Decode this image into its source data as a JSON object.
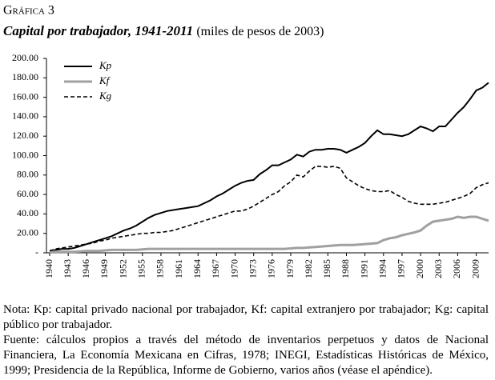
{
  "chart_data": {
    "type": "line",
    "label": "Gráfica 3",
    "title": "Capital por trabajador, 1941-2011",
    "subtitle": "(miles de pesos de 2003)",
    "x": [
      1940,
      1941,
      1942,
      1943,
      1944,
      1945,
      1946,
      1947,
      1948,
      1949,
      1950,
      1951,
      1952,
      1953,
      1954,
      1955,
      1956,
      1957,
      1958,
      1959,
      1960,
      1961,
      1962,
      1963,
      1964,
      1965,
      1966,
      1967,
      1968,
      1969,
      1970,
      1971,
      1972,
      1973,
      1974,
      1975,
      1976,
      1977,
      1978,
      1979,
      1980,
      1981,
      1982,
      1983,
      1984,
      1985,
      1986,
      1987,
      1988,
      1989,
      1990,
      1991,
      1992,
      1993,
      1994,
      1995,
      1996,
      1997,
      1998,
      1999,
      2000,
      2001,
      2002,
      2003,
      2004,
      2005,
      2006,
      2007,
      2008,
      2009,
      2010,
      2011
    ],
    "series": [
      {
        "name": "Kp",
        "color": "#000000",
        "style": "solid",
        "values": [
          2,
          3,
          4,
          4,
          5,
          7,
          9,
          11,
          13,
          15,
          17,
          20,
          23,
          25,
          28,
          32,
          36,
          39,
          41,
          43,
          44,
          45,
          46,
          47,
          48,
          51,
          54,
          58,
          61,
          65,
          69,
          72,
          74,
          75,
          81,
          85,
          90,
          90,
          93,
          96,
          101,
          99,
          104,
          106,
          106,
          107,
          107,
          106,
          103,
          106,
          109,
          113,
          120,
          126,
          122,
          122,
          121,
          120,
          122,
          126,
          130,
          128,
          125,
          130,
          130,
          137,
          144,
          150,
          158,
          167,
          170,
          175
        ]
      },
      {
        "name": "Kf",
        "color": "#a0a0a0",
        "style": "solid",
        "values": [
          1,
          1,
          1,
          1,
          1,
          1.5,
          2,
          2,
          2,
          2.5,
          3,
          3,
          3,
          3,
          3,
          3.5,
          4,
          4,
          4,
          4,
          4,
          4,
          4,
          4,
          4,
          4,
          4,
          4,
          4,
          4,
          4,
          4,
          4,
          4,
          4,
          4,
          4,
          4,
          4,
          4.5,
          5,
          5,
          5.5,
          6,
          6.5,
          7,
          7.5,
          8,
          8,
          8,
          8.5,
          9,
          9.5,
          10,
          13,
          15,
          16,
          18,
          19.5,
          21,
          23,
          28,
          32,
          33,
          34,
          35,
          37,
          36,
          37,
          37,
          35,
          33
        ]
      },
      {
        "name": "Kg",
        "color": "#000000",
        "style": "dashed",
        "values": [
          2,
          4,
          5,
          6,
          7,
          8,
          9,
          10,
          12,
          13,
          15,
          16,
          17,
          18,
          19,
          20,
          20,
          21,
          21,
          22,
          23,
          25,
          27,
          29,
          31,
          33,
          35,
          37,
          39,
          41,
          43,
          43,
          45,
          48,
          52,
          56,
          60,
          63,
          69,
          73,
          80,
          78,
          84,
          89,
          89,
          88,
          89,
          87,
          77,
          73,
          69,
          66,
          64,
          63,
          63,
          64,
          60,
          57,
          53,
          51,
          50,
          50,
          50,
          51,
          52,
          54,
          56,
          58,
          61,
          67,
          70,
          72
        ]
      }
    ],
    "xlim": [
      1940,
      2011
    ],
    "xticks": [
      1940,
      1943,
      1946,
      1949,
      1952,
      1955,
      1958,
      1961,
      1964,
      1967,
      1970,
      1973,
      1976,
      1979,
      1982,
      1985,
      1988,
      1991,
      1994,
      1997,
      2000,
      2003,
      2006,
      2009
    ],
    "ylim": [
      0,
      200
    ],
    "yticks": [
      {
        "value": 0,
        "label": "-"
      },
      {
        "value": 20,
        "label": "20.00"
      },
      {
        "value": 40,
        "label": "40.00"
      },
      {
        "value": 60,
        "label": "60.00"
      },
      {
        "value": 80,
        "label": "80.00"
      },
      {
        "value": 100,
        "label": "100.00"
      },
      {
        "value": 120,
        "label": "120.00"
      },
      {
        "value": 140,
        "label": "140.00"
      },
      {
        "value": 160,
        "label": "160.00"
      },
      {
        "value": 180,
        "label": "180.00"
      },
      {
        "value": 200,
        "label": "200.00"
      }
    ],
    "legend": "top-left",
    "notes": [
      "Nota: Kp: capital privado nacional por trabajador, Kf: capital extranjero por trabajador; Kg: capital público por trabajador.",
      "Fuente: cálculos propios a través del método de inventarios perpetuos y datos de Nacional Financiera, La Economía Mexicana en Cifras, 1978; INEGI, Estadísticas Históricas de México, 1999; Presidencia de la República, Informe de Gobierno, varios años (véase el apéndice)."
    ]
  }
}
